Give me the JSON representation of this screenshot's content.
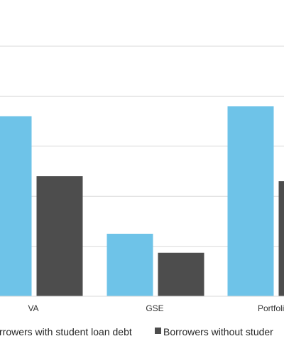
{
  "chart_data": {
    "type": "bar",
    "title": "",
    "xlabel": "",
    "ylabel": "",
    "categories": [
      "VA",
      "GSE",
      "Portfolio l"
    ],
    "series": [
      {
        "name": "Borrowers with student loan debt",
        "values": [
          3.6,
          1.25,
          3.8
        ],
        "color": "#6ec3e8"
      },
      {
        "name": "Borrowers without student loan debt",
        "values": [
          2.4,
          0.87,
          2.3
        ],
        "color": "#4d4d4d"
      }
    ],
    "ylim": [
      0,
      5
    ],
    "gridlines": [
      0,
      1,
      2,
      3,
      4,
      5
    ],
    "grid": true,
    "legend_position": "bottom",
    "legend_labels": [
      "rrowers with student loan debt",
      "Borrowers without studer"
    ]
  }
}
